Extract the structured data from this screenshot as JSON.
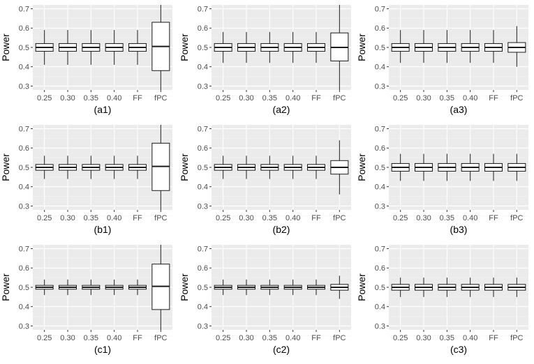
{
  "chart_data": {
    "type": "boxplot",
    "layout": {
      "rows": 3,
      "cols": 3
    },
    "ylabel": "Power",
    "ylim": [
      0.28,
      0.72
    ],
    "yticks": [
      "0.3",
      "0.4",
      "0.5",
      "0.6",
      "0.7"
    ],
    "categories": [
      "0.25",
      "0.30",
      "0.35",
      "0.40",
      "FF",
      "fPC"
    ],
    "grid": true,
    "colors": {
      "panel_bg": "#ebebeb",
      "grid_major": "#ffffff",
      "grid_minor": "#f4f4f4",
      "box_fill": "#ffffff",
      "box_stroke": "#1a1a1a",
      "axis_text": "#4d4d4d",
      "label_text": "#000000"
    },
    "panels": [
      {
        "label": "(a1)",
        "boxes": [
          {
            "category": "0.25",
            "whisker_low": 0.41,
            "q1": 0.48,
            "median": 0.5,
            "q3": 0.52,
            "whisker_high": 0.59
          },
          {
            "category": "0.30",
            "whisker_low": 0.41,
            "q1": 0.48,
            "median": 0.5,
            "q3": 0.52,
            "whisker_high": 0.59
          },
          {
            "category": "0.35",
            "whisker_low": 0.41,
            "q1": 0.48,
            "median": 0.5,
            "q3": 0.52,
            "whisker_high": 0.59
          },
          {
            "category": "0.40",
            "whisker_low": 0.41,
            "q1": 0.48,
            "median": 0.5,
            "q3": 0.52,
            "whisker_high": 0.59
          },
          {
            "category": "FF",
            "whisker_low": 0.41,
            "q1": 0.48,
            "median": 0.5,
            "q3": 0.52,
            "whisker_high": 0.59
          },
          {
            "category": "fPC",
            "whisker_low": 0.28,
            "q1": 0.38,
            "median": 0.505,
            "q3": 0.63,
            "whisker_high": 0.72
          }
        ]
      },
      {
        "label": "(a2)",
        "boxes": [
          {
            "category": "0.25",
            "whisker_low": 0.42,
            "q1": 0.48,
            "median": 0.5,
            "q3": 0.52,
            "whisker_high": 0.58
          },
          {
            "category": "0.30",
            "whisker_low": 0.42,
            "q1": 0.48,
            "median": 0.5,
            "q3": 0.52,
            "whisker_high": 0.58
          },
          {
            "category": "0.35",
            "whisker_low": 0.42,
            "q1": 0.48,
            "median": 0.5,
            "q3": 0.52,
            "whisker_high": 0.58
          },
          {
            "category": "0.40",
            "whisker_low": 0.42,
            "q1": 0.48,
            "median": 0.5,
            "q3": 0.52,
            "whisker_high": 0.58
          },
          {
            "category": "FF",
            "whisker_low": 0.42,
            "q1": 0.48,
            "median": 0.5,
            "q3": 0.52,
            "whisker_high": 0.58
          },
          {
            "category": "fPC",
            "whisker_low": 0.28,
            "q1": 0.43,
            "median": 0.5,
            "q3": 0.575,
            "whisker_high": 0.72
          }
        ]
      },
      {
        "label": "(a3)",
        "boxes": [
          {
            "category": "0.25",
            "whisker_low": 0.42,
            "q1": 0.48,
            "median": 0.5,
            "q3": 0.52,
            "whisker_high": 0.59
          },
          {
            "category": "0.30",
            "whisker_low": 0.42,
            "q1": 0.48,
            "median": 0.5,
            "q3": 0.52,
            "whisker_high": 0.59
          },
          {
            "category": "0.35",
            "whisker_low": 0.42,
            "q1": 0.48,
            "median": 0.5,
            "q3": 0.52,
            "whisker_high": 0.59
          },
          {
            "category": "0.40",
            "whisker_low": 0.42,
            "q1": 0.48,
            "median": 0.5,
            "q3": 0.52,
            "whisker_high": 0.59
          },
          {
            "category": "FF",
            "whisker_low": 0.42,
            "q1": 0.48,
            "median": 0.5,
            "q3": 0.52,
            "whisker_high": 0.59
          },
          {
            "category": "fPC",
            "whisker_low": 0.4,
            "q1": 0.475,
            "median": 0.5,
            "q3": 0.525,
            "whisker_high": 0.61
          }
        ]
      },
      {
        "label": "(b1)",
        "boxes": [
          {
            "category": "0.25",
            "whisker_low": 0.44,
            "q1": 0.485,
            "median": 0.5,
            "q3": 0.515,
            "whisker_high": 0.56
          },
          {
            "category": "0.30",
            "whisker_low": 0.44,
            "q1": 0.485,
            "median": 0.5,
            "q3": 0.515,
            "whisker_high": 0.56
          },
          {
            "category": "0.35",
            "whisker_low": 0.44,
            "q1": 0.485,
            "median": 0.5,
            "q3": 0.515,
            "whisker_high": 0.56
          },
          {
            "category": "0.40",
            "whisker_low": 0.44,
            "q1": 0.485,
            "median": 0.5,
            "q3": 0.515,
            "whisker_high": 0.56
          },
          {
            "category": "FF",
            "whisker_low": 0.44,
            "q1": 0.485,
            "median": 0.5,
            "q3": 0.515,
            "whisker_high": 0.56
          },
          {
            "category": "fPC",
            "whisker_low": 0.28,
            "q1": 0.38,
            "median": 0.505,
            "q3": 0.625,
            "whisker_high": 0.72
          }
        ]
      },
      {
        "label": "(b2)",
        "boxes": [
          {
            "category": "0.25",
            "whisker_low": 0.44,
            "q1": 0.485,
            "median": 0.5,
            "q3": 0.515,
            "whisker_high": 0.56
          },
          {
            "category": "0.30",
            "whisker_low": 0.44,
            "q1": 0.485,
            "median": 0.5,
            "q3": 0.515,
            "whisker_high": 0.56
          },
          {
            "category": "0.35",
            "whisker_low": 0.44,
            "q1": 0.485,
            "median": 0.5,
            "q3": 0.515,
            "whisker_high": 0.56
          },
          {
            "category": "0.40",
            "whisker_low": 0.44,
            "q1": 0.485,
            "median": 0.5,
            "q3": 0.515,
            "whisker_high": 0.56
          },
          {
            "category": "FF",
            "whisker_low": 0.44,
            "q1": 0.485,
            "median": 0.5,
            "q3": 0.515,
            "whisker_high": 0.56
          },
          {
            "category": "fPC",
            "whisker_low": 0.36,
            "q1": 0.465,
            "median": 0.5,
            "q3": 0.535,
            "whisker_high": 0.64
          }
        ]
      },
      {
        "label": "(b3)",
        "boxes": [
          {
            "category": "0.25",
            "whisker_low": 0.43,
            "q1": 0.48,
            "median": 0.5,
            "q3": 0.52,
            "whisker_high": 0.57
          },
          {
            "category": "0.30",
            "whisker_low": 0.43,
            "q1": 0.48,
            "median": 0.5,
            "q3": 0.52,
            "whisker_high": 0.57
          },
          {
            "category": "0.35",
            "whisker_low": 0.43,
            "q1": 0.48,
            "median": 0.5,
            "q3": 0.52,
            "whisker_high": 0.57
          },
          {
            "category": "0.40",
            "whisker_low": 0.43,
            "q1": 0.48,
            "median": 0.5,
            "q3": 0.52,
            "whisker_high": 0.57
          },
          {
            "category": "FF",
            "whisker_low": 0.43,
            "q1": 0.48,
            "median": 0.5,
            "q3": 0.52,
            "whisker_high": 0.57
          },
          {
            "category": "fPC",
            "whisker_low": 0.43,
            "q1": 0.48,
            "median": 0.5,
            "q3": 0.52,
            "whisker_high": 0.57
          }
        ]
      },
      {
        "label": "(c1)",
        "boxes": [
          {
            "category": "0.25",
            "whisker_low": 0.46,
            "q1": 0.49,
            "median": 0.5,
            "q3": 0.51,
            "whisker_high": 0.54
          },
          {
            "category": "0.30",
            "whisker_low": 0.46,
            "q1": 0.49,
            "median": 0.5,
            "q3": 0.51,
            "whisker_high": 0.54
          },
          {
            "category": "0.35",
            "whisker_low": 0.46,
            "q1": 0.49,
            "median": 0.5,
            "q3": 0.51,
            "whisker_high": 0.54
          },
          {
            "category": "0.40",
            "whisker_low": 0.46,
            "q1": 0.49,
            "median": 0.5,
            "q3": 0.51,
            "whisker_high": 0.54
          },
          {
            "category": "FF",
            "whisker_low": 0.46,
            "q1": 0.49,
            "median": 0.5,
            "q3": 0.51,
            "whisker_high": 0.54
          },
          {
            "category": "fPC",
            "whisker_low": 0.28,
            "q1": 0.385,
            "median": 0.505,
            "q3": 0.62,
            "whisker_high": 0.72
          }
        ]
      },
      {
        "label": "(c2)",
        "boxes": [
          {
            "category": "0.25",
            "whisker_low": 0.46,
            "q1": 0.49,
            "median": 0.5,
            "q3": 0.51,
            "whisker_high": 0.54
          },
          {
            "category": "0.30",
            "whisker_low": 0.46,
            "q1": 0.49,
            "median": 0.5,
            "q3": 0.51,
            "whisker_high": 0.54
          },
          {
            "category": "0.35",
            "whisker_low": 0.46,
            "q1": 0.49,
            "median": 0.5,
            "q3": 0.51,
            "whisker_high": 0.54
          },
          {
            "category": "0.40",
            "whisker_low": 0.46,
            "q1": 0.49,
            "median": 0.5,
            "q3": 0.51,
            "whisker_high": 0.54
          },
          {
            "category": "FF",
            "whisker_low": 0.46,
            "q1": 0.49,
            "median": 0.5,
            "q3": 0.51,
            "whisker_high": 0.54
          },
          {
            "category": "fPC",
            "whisker_low": 0.44,
            "q1": 0.485,
            "median": 0.5,
            "q3": 0.515,
            "whisker_high": 0.56
          }
        ]
      },
      {
        "label": "(c3)",
        "boxes": [
          {
            "category": "0.25",
            "whisker_low": 0.45,
            "q1": 0.485,
            "median": 0.5,
            "q3": 0.515,
            "whisker_high": 0.55
          },
          {
            "category": "0.30",
            "whisker_low": 0.45,
            "q1": 0.485,
            "median": 0.5,
            "q3": 0.515,
            "whisker_high": 0.55
          },
          {
            "category": "0.35",
            "whisker_low": 0.45,
            "q1": 0.485,
            "median": 0.5,
            "q3": 0.515,
            "whisker_high": 0.55
          },
          {
            "category": "0.40",
            "whisker_low": 0.45,
            "q1": 0.485,
            "median": 0.5,
            "q3": 0.515,
            "whisker_high": 0.55
          },
          {
            "category": "FF",
            "whisker_low": 0.45,
            "q1": 0.485,
            "median": 0.5,
            "q3": 0.515,
            "whisker_high": 0.55
          },
          {
            "category": "fPC",
            "whisker_low": 0.45,
            "q1": 0.485,
            "median": 0.5,
            "q3": 0.515,
            "whisker_high": 0.55
          }
        ]
      }
    ]
  }
}
